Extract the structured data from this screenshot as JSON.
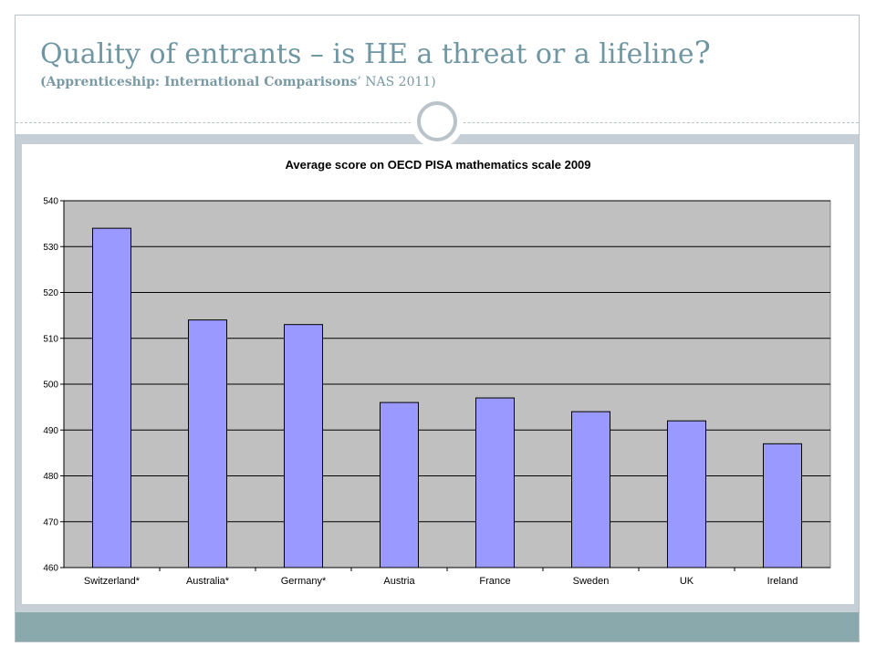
{
  "slide": {
    "title": "Quality of entrants – is HE a threat or a lifeline",
    "title_mark": "?",
    "subtitle_bold": "(Apprenticeship: International Comparisons",
    "subtitle_rest": "’ NAS  2011)"
  },
  "colors": {
    "title": "#6f96a2",
    "content_band": "#c6cfd6",
    "footer_band": "#8aa9ac",
    "plot_bg": "#c0c0c0",
    "bar_fill": "#9999ff",
    "bar_stroke": "#000000"
  },
  "chart_data": {
    "type": "bar",
    "title": "Average score on OECD PISA mathematics scale 2009",
    "categories": [
      "Switzerland*",
      "Australia*",
      "Germany*",
      "Austria",
      "France",
      "Sweden",
      "UK",
      "Ireland"
    ],
    "values": [
      534,
      514,
      513,
      496,
      497,
      494,
      492,
      487
    ],
    "ylim": [
      460,
      540
    ],
    "yticks": [
      460,
      470,
      480,
      490,
      500,
      510,
      520,
      530,
      540
    ],
    "grid": true,
    "legend": "none"
  }
}
